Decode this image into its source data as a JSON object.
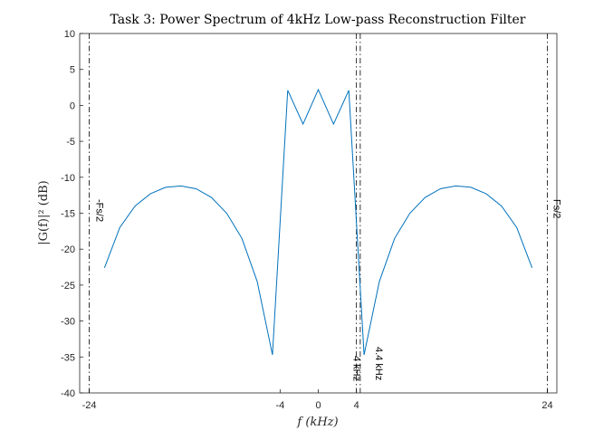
{
  "chart_data": {
    "type": "line",
    "title": "Task 3: Power Spectrum of 4kHz Low-pass Reconstruction Filter",
    "xlabel": "f (kHz)",
    "ylabel": "|G(f)|² (dB)",
    "xlim": [
      -25,
      25
    ],
    "ylim": [
      -40,
      10
    ],
    "xticks": [
      -24,
      -4,
      0,
      4,
      24
    ],
    "yticks": [
      10,
      5,
      0,
      -5,
      -10,
      -15,
      -20,
      -25,
      -30,
      -35,
      -40
    ],
    "grid": false,
    "series": [
      {
        "color": "#0072BD",
        "x": [
          -22.4,
          -20.8,
          -19.2,
          -17.6,
          -16.0,
          -14.4,
          -12.8,
          -11.2,
          -9.6,
          -8.0,
          -6.4,
          -4.8,
          -3.2,
          -1.6,
          0.0,
          1.6,
          3.2,
          4.8,
          6.4,
          8.0,
          9.6,
          11.2,
          12.8,
          14.4,
          16.0,
          17.6,
          19.2,
          20.8,
          22.4
        ],
        "y": [
          -22.6,
          -17.0,
          -14.0,
          -12.3,
          -11.4,
          -11.2,
          -11.6,
          -12.8,
          -15.0,
          -18.5,
          -24.5,
          -34.7,
          2.1,
          -2.6,
          2.2,
          -2.6,
          2.1,
          -34.7,
          -24.5,
          -18.5,
          -15.0,
          -12.8,
          -11.6,
          -11.2,
          -11.4,
          -12.3,
          -14.0,
          -17.0,
          -22.6
        ]
      }
    ],
    "vlines": [
      {
        "x": -24,
        "label": "-Fs/2"
      },
      {
        "x": 24,
        "label": "Fs/2"
      },
      {
        "x": 4,
        "label": "4 kHz"
      },
      {
        "x": 4.4,
        "label": "4.4 kHz"
      }
    ],
    "line_color": "#0072BD"
  }
}
